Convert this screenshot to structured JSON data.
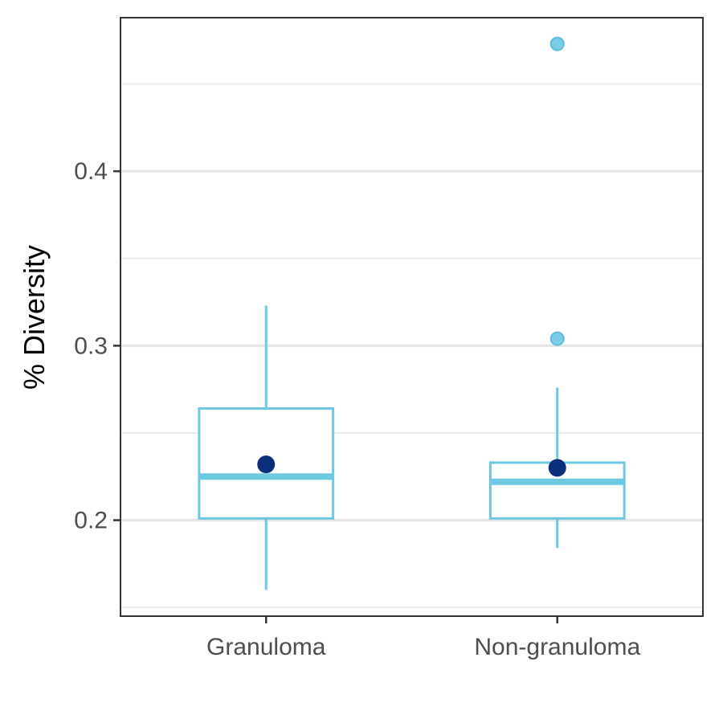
{
  "chart_data": {
    "type": "box",
    "ylabel": "% Diversity",
    "xlabel": "",
    "categories": [
      "Granuloma",
      "Non-granuloma"
    ],
    "ylim": [
      0.145,
      0.488
    ],
    "yticks": [
      "0.2",
      "0.3",
      "0.4"
    ],
    "ytick_values": [
      0.2,
      0.3,
      0.4
    ],
    "minor_gridlines": [
      0.15,
      0.25,
      0.35,
      0.45
    ],
    "grid": true,
    "boxes": [
      {
        "category": "Granuloma",
        "min": 0.16,
        "q1": 0.201,
        "median": 0.225,
        "q3": 0.264,
        "max": 0.323,
        "mean": 0.232,
        "outliers": []
      },
      {
        "category": "Non-granuloma",
        "min": 0.184,
        "q1": 0.201,
        "median": 0.222,
        "q3": 0.233,
        "max": 0.276,
        "mean": 0.23,
        "outliers": [
          0.304,
          0.473
        ]
      }
    ],
    "colors": {
      "box": "#6DC8E2",
      "mean": "#0A2E7A",
      "grid_major": "#E6E6E6",
      "grid_minor": "#EBEBEB",
      "panel_border": "#333333",
      "tick_label": "#4D4D4D"
    }
  }
}
